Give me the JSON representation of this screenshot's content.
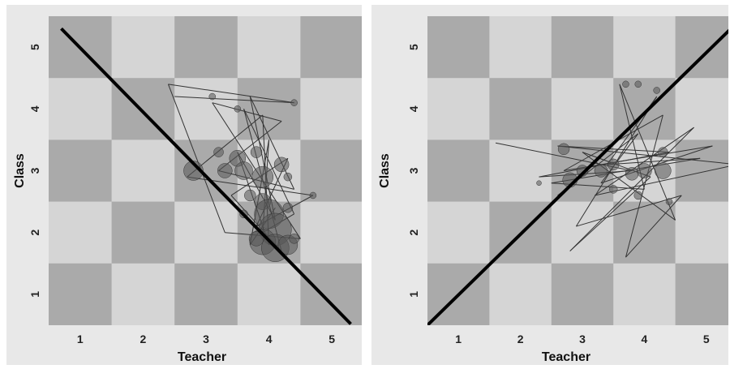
{
  "chart_data": [
    {
      "type": "scatter",
      "title": "",
      "xlabel": "Teacher",
      "ylabel": "Class",
      "xlim": [
        0.5,
        5.5
      ],
      "ylim": [
        0.5,
        5.5
      ],
      "x_ticks": [
        "1",
        "2",
        "3",
        "4",
        "5"
      ],
      "y_ticks": [
        "1",
        "2",
        "3",
        "4",
        "5"
      ],
      "background": "5x5 checkerboard",
      "reference_line": {
        "from": [
          0.7,
          5.3
        ],
        "to": [
          5.3,
          0.52
        ]
      },
      "series": [
        {
          "values": [
            {
              "x": 2.5,
              "y": 4.2
            },
            {
              "x": 4.4,
              "y": 4.1
            },
            {
              "x": 2.4,
              "y": 4.4
            },
            {
              "x": 3.3,
              "y": 2.0
            },
            {
              "x": 4.5,
              "y": 1.9
            },
            {
              "x": 3.1,
              "y": 4.1
            },
            {
              "x": 4.2,
              "y": 3.8
            },
            {
              "x": 3.2,
              "y": 3.0
            },
            {
              "x": 4.4,
              "y": 2.7
            },
            {
              "x": 3.7,
              "y": 4.2
            },
            {
              "x": 4.1,
              "y": 2.2
            },
            {
              "x": 3.5,
              "y": 3.3
            },
            {
              "x": 4.0,
              "y": 1.8
            },
            {
              "x": 3.9,
              "y": 3.9
            },
            {
              "x": 2.7,
              "y": 2.9
            },
            {
              "x": 4.7,
              "y": 2.6
            },
            {
              "x": 3.8,
              "y": 2.1
            },
            {
              "x": 4.3,
              "y": 3.2
            },
            {
              "x": 3.4,
              "y": 2.6
            },
            {
              "x": 4.2,
              "y": 1.7
            },
            {
              "x": 3.6,
              "y": 4.0
            },
            {
              "x": 4.4,
              "y": 2.3
            },
            {
              "x": 3.9,
              "y": 2.0
            },
            {
              "x": 4.0,
              "y": 3.5
            },
            {
              "x": 3.7,
              "y": 1.8
            },
            {
              "x": 4.1,
              "y": 2.4
            }
          ],
          "markers": [
            {
              "x": 2.8,
              "y": 3.0,
              "s": 12
            },
            {
              "x": 3.3,
              "y": 3.0,
              "s": 9
            },
            {
              "x": 3.5,
              "y": 3.2,
              "s": 10
            },
            {
              "x": 3.6,
              "y": 3.0,
              "s": 11
            },
            {
              "x": 3.9,
              "y": 2.9,
              "s": 13
            },
            {
              "x": 4.2,
              "y": 3.1,
              "s": 9
            },
            {
              "x": 3.9,
              "y": 2.5,
              "s": 10
            },
            {
              "x": 4.0,
              "y": 2.3,
              "s": 18
            },
            {
              "x": 4.1,
              "y": 2.05,
              "s": 20
            },
            {
              "x": 3.9,
              "y": 1.85,
              "s": 16
            },
            {
              "x": 4.1,
              "y": 1.75,
              "s": 17
            },
            {
              "x": 4.3,
              "y": 1.8,
              "s": 12
            },
            {
              "x": 3.2,
              "y": 3.3,
              "s": 6
            },
            {
              "x": 3.8,
              "y": 3.3,
              "s": 7
            },
            {
              "x": 3.7,
              "y": 2.6,
              "s": 7
            },
            {
              "x": 4.3,
              "y": 2.4,
              "s": 6
            },
            {
              "x": 3.1,
              "y": 4.2,
              "s": 4
            },
            {
              "x": 4.4,
              "y": 4.1,
              "s": 4
            },
            {
              "x": 4.7,
              "y": 2.6,
              "s": 4
            },
            {
              "x": 4.3,
              "y": 2.9,
              "s": 5
            },
            {
              "x": 3.5,
              "y": 4.0,
              "s": 4
            },
            {
              "x": 3.8,
              "y": 1.9,
              "s": 9
            },
            {
              "x": 4.4,
              "y": 1.9,
              "s": 6
            },
            {
              "x": 3.6,
              "y": 2.3,
              "s": 5
            }
          ]
        }
      ]
    },
    {
      "type": "scatter",
      "title": "",
      "xlabel": "Teacher",
      "ylabel": "Class",
      "xlim": [
        0.5,
        5.5
      ],
      "ylim": [
        0.5,
        5.5
      ],
      "x_ticks": [
        "1",
        "2",
        "3",
        "4",
        "5"
      ],
      "y_ticks": [
        "1",
        "2",
        "3",
        "4",
        "5"
      ],
      "background": "5x5 checkerboard",
      "reference_line": {
        "from": [
          0.5,
          0.5
        ],
        "to": [
          5.5,
          5.4
        ]
      },
      "series": [
        {
          "values": [
            {
              "x": 1.6,
              "y": 3.45
            },
            {
              "x": 3.8,
              "y": 3.0
            },
            {
              "x": 2.3,
              "y": 2.9
            },
            {
              "x": 4.4,
              "y": 3.3
            },
            {
              "x": 2.6,
              "y": 3.4
            },
            {
              "x": 5.5,
              "y": 3.1
            },
            {
              "x": 3.2,
              "y": 2.6
            },
            {
              "x": 4.8,
              "y": 3.7
            },
            {
              "x": 2.8,
              "y": 1.7
            },
            {
              "x": 4.1,
              "y": 2.9
            },
            {
              "x": 3.0,
              "y": 3.3
            },
            {
              "x": 4.5,
              "y": 2.2
            },
            {
              "x": 3.6,
              "y": 4.4
            },
            {
              "x": 4.0,
              "y": 2.7
            },
            {
              "x": 2.5,
              "y": 2.8
            },
            {
              "x": 4.9,
              "y": 3.2
            },
            {
              "x": 3.4,
              "y": 3.1
            },
            {
              "x": 4.2,
              "y": 4.2
            },
            {
              "x": 2.9,
              "y": 2.1
            },
            {
              "x": 4.6,
              "y": 2.6
            },
            {
              "x": 3.7,
              "y": 1.6
            },
            {
              "x": 4.3,
              "y": 3.9
            },
            {
              "x": 2.7,
              "y": 3.0
            },
            {
              "x": 5.1,
              "y": 3.4
            },
            {
              "x": 3.3,
              "y": 2.8
            },
            {
              "x": 3.9,
              "y": 3.6
            },
            {
              "x": 2.6,
              "y": 2.6
            }
          ],
          "markers": [
            {
              "x": 2.7,
              "y": 3.35,
              "s": 7
            },
            {
              "x": 2.8,
              "y": 2.85,
              "s": 9
            },
            {
              "x": 3.0,
              "y": 3.0,
              "s": 7
            },
            {
              "x": 3.3,
              "y": 3.0,
              "s": 8
            },
            {
              "x": 3.5,
              "y": 3.1,
              "s": 7
            },
            {
              "x": 3.8,
              "y": 2.95,
              "s": 8
            },
            {
              "x": 4.0,
              "y": 3.0,
              "s": 9
            },
            {
              "x": 4.3,
              "y": 3.0,
              "s": 10
            },
            {
              "x": 4.3,
              "y": 3.3,
              "s": 6
            },
            {
              "x": 3.7,
              "y": 4.4,
              "s": 4
            },
            {
              "x": 3.9,
              "y": 4.4,
              "s": 4
            },
            {
              "x": 4.2,
              "y": 4.3,
              "s": 4
            },
            {
              "x": 2.3,
              "y": 2.8,
              "s": 3
            },
            {
              "x": 4.4,
              "y": 2.5,
              "s": 4
            },
            {
              "x": 3.9,
              "y": 2.6,
              "s": 5
            },
            {
              "x": 3.5,
              "y": 2.7,
              "s": 5
            }
          ]
        }
      ]
    }
  ]
}
